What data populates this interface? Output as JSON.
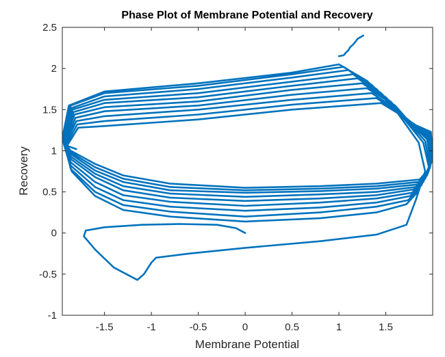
{
  "chart_data": {
    "type": "line",
    "title": "Phase Plot of Membrane Potential and Recovery",
    "xlabel": "Membrane Potential",
    "ylabel": "Recovery",
    "xlim": [
      -1.95,
      2.0
    ],
    "ylim": [
      -1,
      2.5
    ],
    "x_ticks": [
      -1.5,
      -1,
      -0.5,
      0,
      0.5,
      1,
      1.5
    ],
    "x_tick_labels": [
      "-1.5",
      "-1",
      "-0.5",
      "0",
      "0.5",
      "1",
      "1.5"
    ],
    "y_ticks": [
      -1,
      -0.5,
      0,
      0.5,
      1,
      1.5,
      2,
      2.5
    ],
    "y_tick_labels": [
      "-1",
      "-0.5",
      "0",
      "0.5",
      "1",
      "1.5",
      "2",
      "2.5"
    ],
    "grid": false,
    "line_color": "#0072BD",
    "series": [
      {
        "points": [
          [
            0.0,
            0.0
          ],
          [
            -0.1,
            0.06
          ],
          [
            -0.3,
            0.1
          ],
          [
            -0.7,
            0.11
          ],
          [
            -1.1,
            0.1
          ],
          [
            -1.5,
            0.07
          ],
          [
            -1.7,
            0.03
          ],
          [
            -1.72,
            -0.04
          ],
          [
            -1.6,
            -0.2
          ],
          [
            -1.4,
            -0.42
          ],
          [
            -1.15,
            -0.57
          ],
          [
            -1.08,
            -0.5
          ],
          [
            -1.0,
            -0.36
          ],
          [
            -0.95,
            -0.3
          ],
          [
            -0.6,
            -0.25
          ],
          [
            0.0,
            -0.18
          ],
          [
            0.8,
            -0.1
          ],
          [
            1.4,
            -0.02
          ],
          [
            1.72,
            0.1
          ],
          [
            1.82,
            0.4
          ],
          [
            1.92,
            0.75
          ],
          [
            1.85,
            1.1
          ],
          [
            1.6,
            1.5
          ],
          [
            1.3,
            1.85
          ],
          [
            1.0,
            2.05
          ],
          [
            0.5,
            1.95
          ],
          [
            -0.5,
            1.82
          ],
          [
            -1.5,
            1.72
          ],
          [
            -1.88,
            1.55
          ],
          [
            -1.95,
            1.15
          ],
          [
            -1.85,
            0.75
          ],
          [
            -1.6,
            0.45
          ],
          [
            -1.3,
            0.28
          ],
          [
            -0.8,
            0.2
          ],
          [
            0.0,
            0.14
          ],
          [
            0.8,
            0.18
          ],
          [
            1.4,
            0.25
          ],
          [
            1.72,
            0.35
          ],
          [
            1.84,
            0.5
          ],
          [
            1.96,
            0.8
          ],
          [
            1.9,
            1.1
          ],
          [
            1.65,
            1.45
          ],
          [
            1.35,
            1.8
          ],
          [
            1.05,
            2.02
          ],
          [
            0.5,
            1.93
          ],
          [
            -0.5,
            1.79
          ],
          [
            -1.5,
            1.7
          ],
          [
            -1.86,
            1.55
          ],
          [
            -1.94,
            1.15
          ],
          [
            -1.86,
            0.78
          ],
          [
            -1.6,
            0.5
          ],
          [
            -1.3,
            0.34
          ],
          [
            -0.8,
            0.26
          ],
          [
            0.0,
            0.2
          ],
          [
            0.8,
            0.25
          ],
          [
            1.4,
            0.32
          ],
          [
            1.74,
            0.4
          ],
          [
            1.86,
            0.55
          ],
          [
            1.97,
            0.83
          ],
          [
            1.92,
            1.12
          ],
          [
            1.68,
            1.42
          ],
          [
            1.4,
            1.75
          ],
          [
            1.1,
            1.98
          ],
          [
            0.5,
            1.89
          ],
          [
            -0.5,
            1.75
          ],
          [
            -1.5,
            1.66
          ],
          [
            -1.85,
            1.52
          ],
          [
            -1.94,
            1.14
          ],
          [
            -1.86,
            0.82
          ],
          [
            -1.6,
            0.56
          ],
          [
            -1.3,
            0.4
          ],
          [
            -0.8,
            0.32
          ],
          [
            0.0,
            0.27
          ],
          [
            0.8,
            0.31
          ],
          [
            1.4,
            0.37
          ],
          [
            1.76,
            0.45
          ],
          [
            1.88,
            0.58
          ],
          [
            1.98,
            0.86
          ],
          [
            1.94,
            1.14
          ],
          [
            1.7,
            1.4
          ],
          [
            1.45,
            1.7
          ],
          [
            1.15,
            1.93
          ],
          [
            0.5,
            1.84
          ],
          [
            -0.5,
            1.7
          ],
          [
            -1.5,
            1.62
          ],
          [
            -1.84,
            1.5
          ],
          [
            -1.94,
            1.13
          ],
          [
            -1.86,
            0.86
          ],
          [
            -1.6,
            0.62
          ],
          [
            -1.3,
            0.46
          ],
          [
            -0.8,
            0.38
          ],
          [
            0.0,
            0.33
          ],
          [
            0.8,
            0.37
          ],
          [
            1.4,
            0.42
          ],
          [
            1.78,
            0.49
          ],
          [
            1.9,
            0.62
          ],
          [
            1.99,
            0.88
          ],
          [
            1.95,
            1.16
          ],
          [
            1.72,
            1.38
          ],
          [
            1.5,
            1.65
          ],
          [
            1.2,
            1.88
          ],
          [
            0.5,
            1.79
          ],
          [
            -0.5,
            1.65
          ],
          [
            -1.5,
            1.58
          ],
          [
            -1.83,
            1.47
          ],
          [
            -1.93,
            1.12
          ],
          [
            -1.86,
            0.9
          ],
          [
            -1.6,
            0.68
          ],
          [
            -1.3,
            0.52
          ],
          [
            -0.8,
            0.43
          ],
          [
            0.0,
            0.39
          ],
          [
            0.8,
            0.42
          ],
          [
            1.4,
            0.46
          ],
          [
            1.8,
            0.53
          ],
          [
            1.92,
            0.66
          ],
          [
            2.0,
            0.9
          ],
          [
            1.96,
            1.18
          ],
          [
            1.74,
            1.36
          ],
          [
            1.55,
            1.6
          ],
          [
            1.25,
            1.82
          ],
          [
            0.5,
            1.74
          ],
          [
            -0.5,
            1.6
          ],
          [
            -1.5,
            1.53
          ],
          [
            -1.82,
            1.44
          ],
          [
            -1.93,
            1.11
          ],
          [
            -1.86,
            0.93
          ],
          [
            -1.6,
            0.72
          ],
          [
            -1.3,
            0.57
          ],
          [
            -0.8,
            0.48
          ],
          [
            0.0,
            0.44
          ],
          [
            0.8,
            0.47
          ],
          [
            1.4,
            0.5
          ],
          [
            1.82,
            0.56
          ],
          [
            1.94,
            0.7
          ],
          [
            2.0,
            0.92
          ],
          [
            1.97,
            1.2
          ],
          [
            1.76,
            1.34
          ],
          [
            1.6,
            1.55
          ],
          [
            1.3,
            1.76
          ],
          [
            0.5,
            1.68
          ],
          [
            -0.5,
            1.55
          ],
          [
            -1.5,
            1.48
          ],
          [
            -1.81,
            1.4
          ],
          [
            -1.92,
            1.1
          ],
          [
            -1.86,
            0.96
          ],
          [
            -1.6,
            0.76
          ],
          [
            -1.3,
            0.62
          ],
          [
            -0.8,
            0.52
          ],
          [
            0.0,
            0.49
          ],
          [
            0.8,
            0.51
          ],
          [
            1.4,
            0.54
          ],
          [
            1.84,
            0.59
          ],
          [
            1.95,
            0.73
          ],
          [
            2.0,
            0.94
          ],
          [
            1.98,
            1.21
          ],
          [
            1.78,
            1.33
          ],
          [
            1.62,
            1.5
          ],
          [
            1.35,
            1.7
          ],
          [
            0.5,
            1.62
          ],
          [
            -0.5,
            1.5
          ],
          [
            -1.5,
            1.42
          ],
          [
            -1.8,
            1.36
          ],
          [
            -1.92,
            1.08
          ],
          [
            -1.86,
            0.98
          ],
          [
            -1.6,
            0.8
          ],
          [
            -1.3,
            0.66
          ],
          [
            -0.8,
            0.56
          ],
          [
            0.0,
            0.52
          ],
          [
            0.8,
            0.54
          ],
          [
            1.4,
            0.57
          ],
          [
            1.85,
            0.62
          ],
          [
            1.96,
            0.76
          ],
          [
            2.0,
            0.95
          ],
          [
            1.98,
            1.22
          ],
          [
            1.8,
            1.32
          ],
          [
            1.65,
            1.46
          ],
          [
            1.4,
            1.64
          ],
          [
            0.5,
            1.56
          ],
          [
            -0.5,
            1.44
          ],
          [
            -1.5,
            1.36
          ],
          [
            -1.79,
            1.32
          ],
          [
            -1.91,
            1.07
          ],
          [
            -1.86,
            1.0
          ],
          [
            -1.6,
            0.84
          ],
          [
            -1.3,
            0.7
          ],
          [
            -0.8,
            0.6
          ],
          [
            0.0,
            0.55
          ],
          [
            0.8,
            0.57
          ],
          [
            1.4,
            0.6
          ],
          [
            1.86,
            0.65
          ],
          [
            1.97,
            0.79
          ],
          [
            2.0,
            0.97
          ],
          [
            1.98,
            1.23
          ],
          [
            1.82,
            1.31
          ],
          [
            1.68,
            1.42
          ],
          [
            1.45,
            1.58
          ],
          [
            0.5,
            1.5
          ],
          [
            -0.5,
            1.38
          ],
          [
            -1.5,
            1.3
          ],
          [
            -1.78,
            1.28
          ],
          [
            -1.9,
            1.06
          ],
          [
            -1.8,
            1.02
          ]
        ]
      },
      {
        "points": [
          [
            1.0,
            2.15
          ],
          [
            1.05,
            2.16
          ],
          [
            1.08,
            2.2
          ],
          [
            1.1,
            2.22
          ],
          [
            1.12,
            2.26
          ],
          [
            1.15,
            2.29
          ],
          [
            1.18,
            2.33
          ],
          [
            1.2,
            2.36
          ],
          [
            1.23,
            2.38
          ],
          [
            1.26,
            2.4
          ]
        ]
      }
    ]
  }
}
